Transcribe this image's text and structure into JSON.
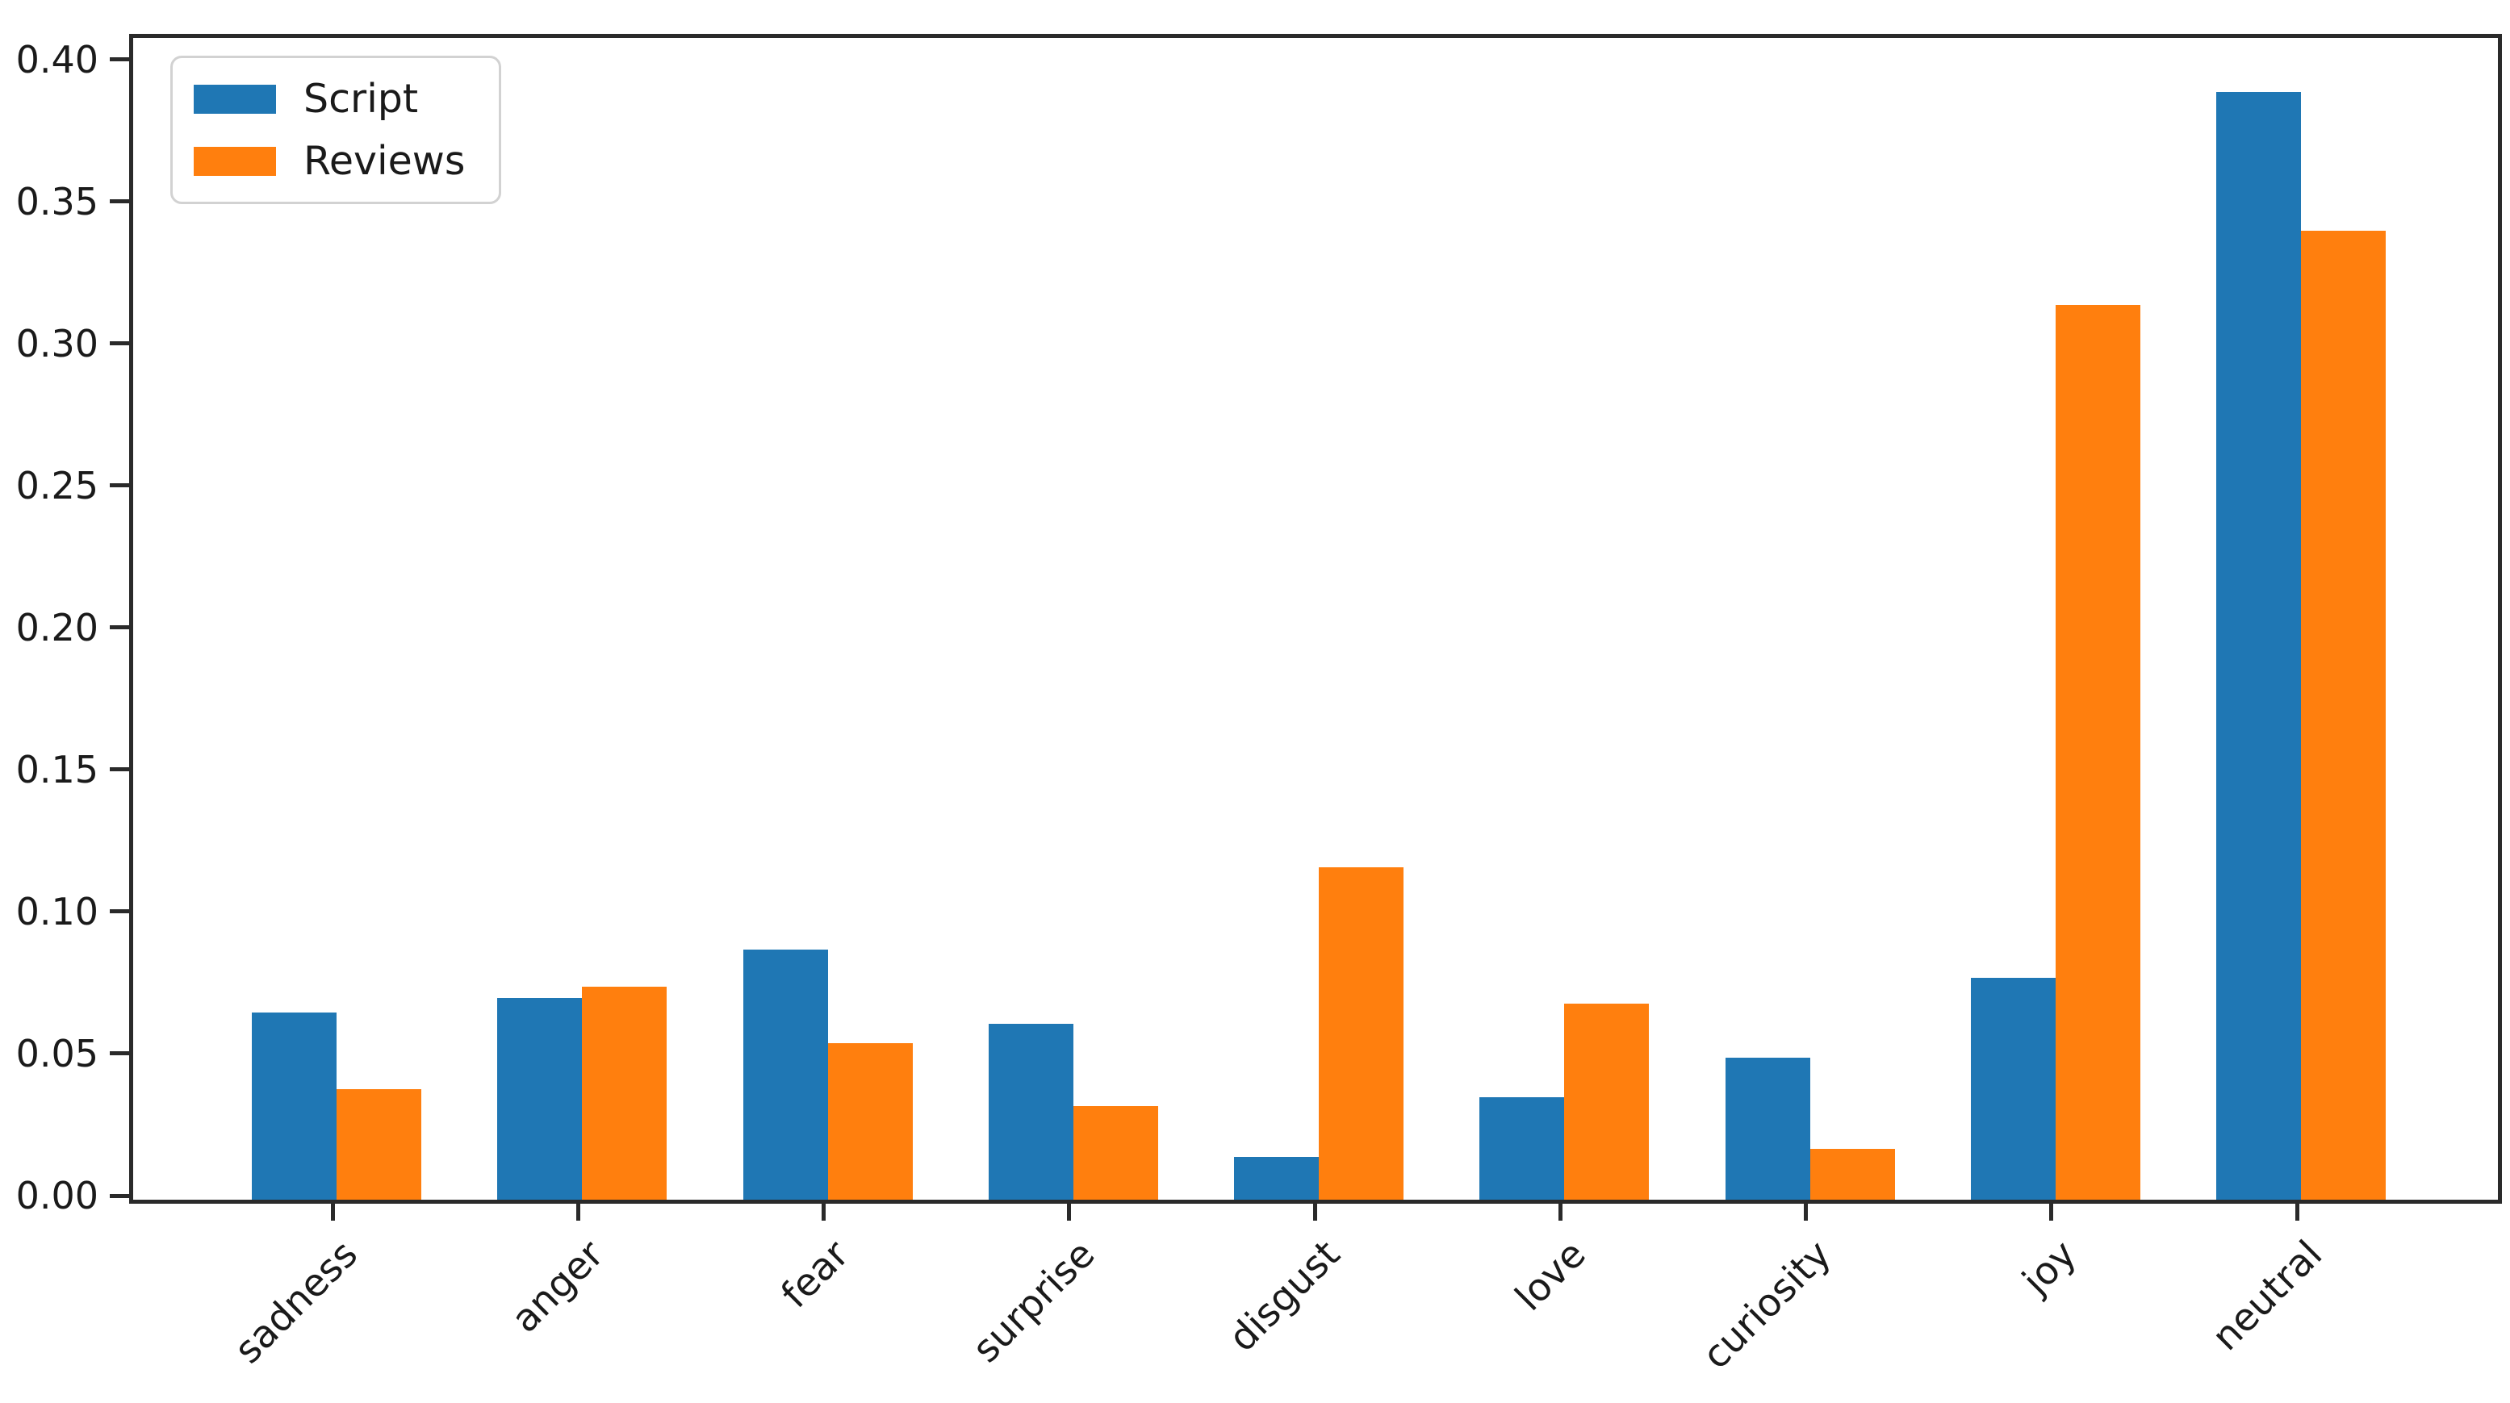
{
  "chart_data": {
    "type": "bar",
    "title": "",
    "xlabel": "",
    "ylabel": "",
    "categories": [
      "sadness",
      "anger",
      "fear",
      "surprise",
      "disgust",
      "love",
      "curiosity",
      "joy",
      "neutral"
    ],
    "series": [
      {
        "name": "Script",
        "color": "#1f77b4",
        "values": [
          0.066,
          0.071,
          0.088,
          0.062,
          0.015,
          0.036,
          0.05,
          0.078,
          0.39
        ]
      },
      {
        "name": "Reviews",
        "color": "#ff7f0e",
        "values": [
          0.039,
          0.075,
          0.055,
          0.033,
          0.117,
          0.069,
          0.018,
          0.315,
          0.341
        ]
      }
    ],
    "ylim": [
      0,
      0.409
    ],
    "y_ticks": [
      "0.00",
      "0.05",
      "0.10",
      "0.15",
      "0.20",
      "0.25",
      "0.30",
      "0.35",
      "0.40"
    ],
    "y_tick_values": [
      0.0,
      0.05,
      0.1,
      0.15,
      0.2,
      0.25,
      0.3,
      0.35,
      0.4
    ],
    "x_tick_rotation": 45,
    "grid": false,
    "legend_position": "upper left",
    "colors": {
      "axis": "#2a2a2a",
      "tick_text": "#1a1a1a",
      "background": "#ffffff"
    }
  }
}
